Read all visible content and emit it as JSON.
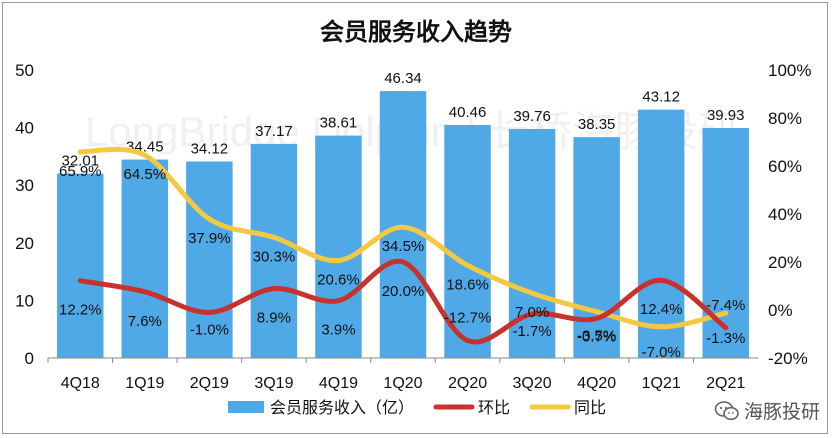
{
  "chart_data": {
    "type": "bar",
    "title": "会员服务收入趋势",
    "categories": [
      "4Q18",
      "1Q19",
      "2Q19",
      "3Q19",
      "4Q19",
      "1Q20",
      "2Q20",
      "3Q20",
      "4Q20",
      "1Q21",
      "2Q21"
    ],
    "series": [
      {
        "name": "会员服务收入（亿）",
        "kind": "bar",
        "axis": "left",
        "color": "#4fa9e6",
        "values": [
          32.01,
          34.45,
          34.12,
          37.17,
          38.61,
          46.34,
          40.46,
          39.76,
          38.35,
          43.12,
          39.93
        ]
      },
      {
        "name": "环比",
        "kind": "line",
        "axis": "right",
        "color": "#c8322c",
        "values": [
          12.2,
          7.6,
          -1.0,
          8.9,
          3.9,
          20.0,
          -12.7,
          -1.7,
          -3.5,
          12.4,
          -7.4
        ]
      },
      {
        "name": "同比",
        "kind": "line",
        "axis": "right",
        "color": "#f5c842",
        "values": [
          65.9,
          64.5,
          37.9,
          30.3,
          20.6,
          34.5,
          18.6,
          7.0,
          -0.7,
          -7.0,
          -1.3
        ]
      }
    ],
    "bar_labels": [
      "32.01",
      "34.45",
      "34.12",
      "37.17",
      "38.61",
      "46.34",
      "40.46",
      "39.76",
      "38.35",
      "43.12",
      "39.93"
    ],
    "mom_labels": [
      "12.2%",
      "7.6%",
      "-1.0%",
      "8.9%",
      "3.9%",
      "20.0%",
      "-12.7%",
      "-1.7%",
      "-3.5%",
      "12.4%",
      "-7.4%"
    ],
    "yoy_labels": [
      "65.9%",
      "64.5%",
      "37.9%",
      "30.3%",
      "20.6%",
      "34.5%",
      "18.6%",
      "7.0%",
      "-0.7%",
      "-7.0%",
      "-1.3%"
    ],
    "y_left": {
      "min": 0,
      "max": 50,
      "ticks": [
        "0",
        "10",
        "20",
        "30",
        "40",
        "50"
      ]
    },
    "y_right": {
      "min": -20,
      "max": 100,
      "ticks": [
        "-20%",
        "0%",
        "20%",
        "40%",
        "60%",
        "80%",
        "100%"
      ]
    },
    "legend": [
      "会员服务收入（亿）",
      "环比",
      "同比"
    ],
    "legend_position": "bottom",
    "grid": false
  },
  "watermark": {
    "text": "LongBridge Dolphin | 长桥海豚投研"
  },
  "brand": {
    "text": "海豚投研",
    "icon": "wechat-icon"
  }
}
